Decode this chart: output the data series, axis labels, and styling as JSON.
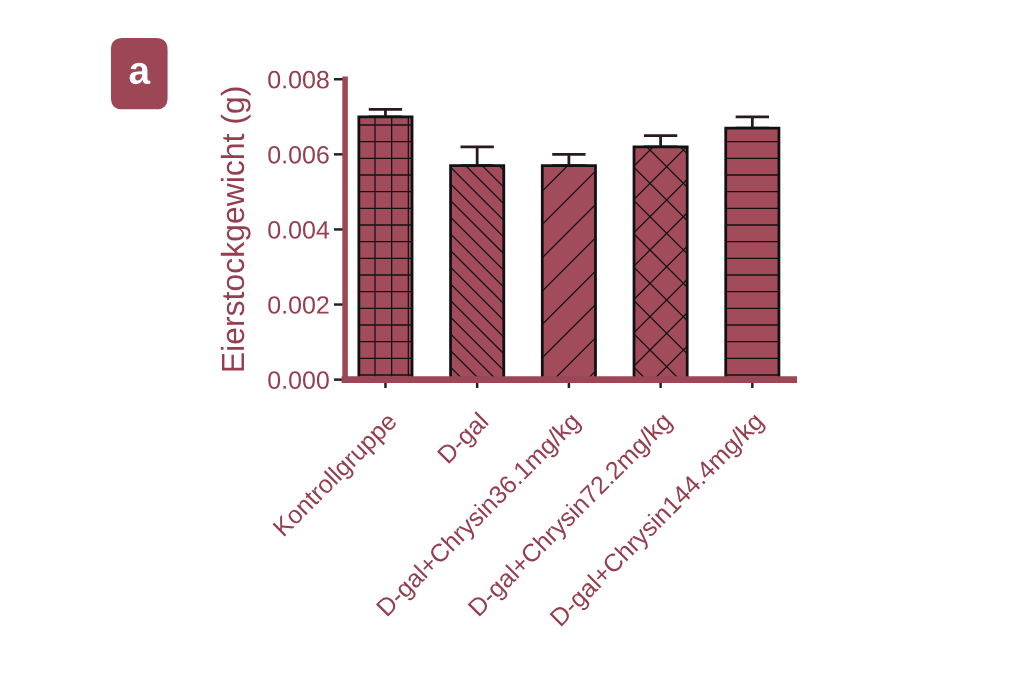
{
  "chart_data": {
    "type": "bar",
    "categories": [
      "Kontrollgruppe",
      "D-gal",
      "D-gal+Chrysin36.1mg/kg",
      "D-gal+Chrysin72.2mg/kg",
      "D-gal+Chrysin144.4mg/kg"
    ],
    "values": [
      0.007,
      0.0057,
      0.0057,
      0.0062,
      0.0067
    ],
    "errors": [
      [
        0.007,
        0.0072
      ],
      [
        0.0057,
        0.0062
      ],
      [
        0.0057,
        0.006
      ],
      [
        0.0062,
        0.0065
      ],
      [
        0.0067,
        0.007
      ]
    ],
    "color": "#a24b5b",
    "ylabel": "Eierstockgewicht (g)",
    "ylim": [
      0,
      0.008
    ],
    "yticks": [
      {
        "value": 0,
        "label": "0.000"
      },
      {
        "value": 0.002,
        "label": "0.002"
      },
      {
        "value": 0.004,
        "label": "0.004"
      },
      {
        "value": 0.006,
        "label": "0.006"
      },
      {
        "value": 0.008,
        "label": "0.008"
      }
    ],
    "annotations": [
      "a"
    ]
  }
}
